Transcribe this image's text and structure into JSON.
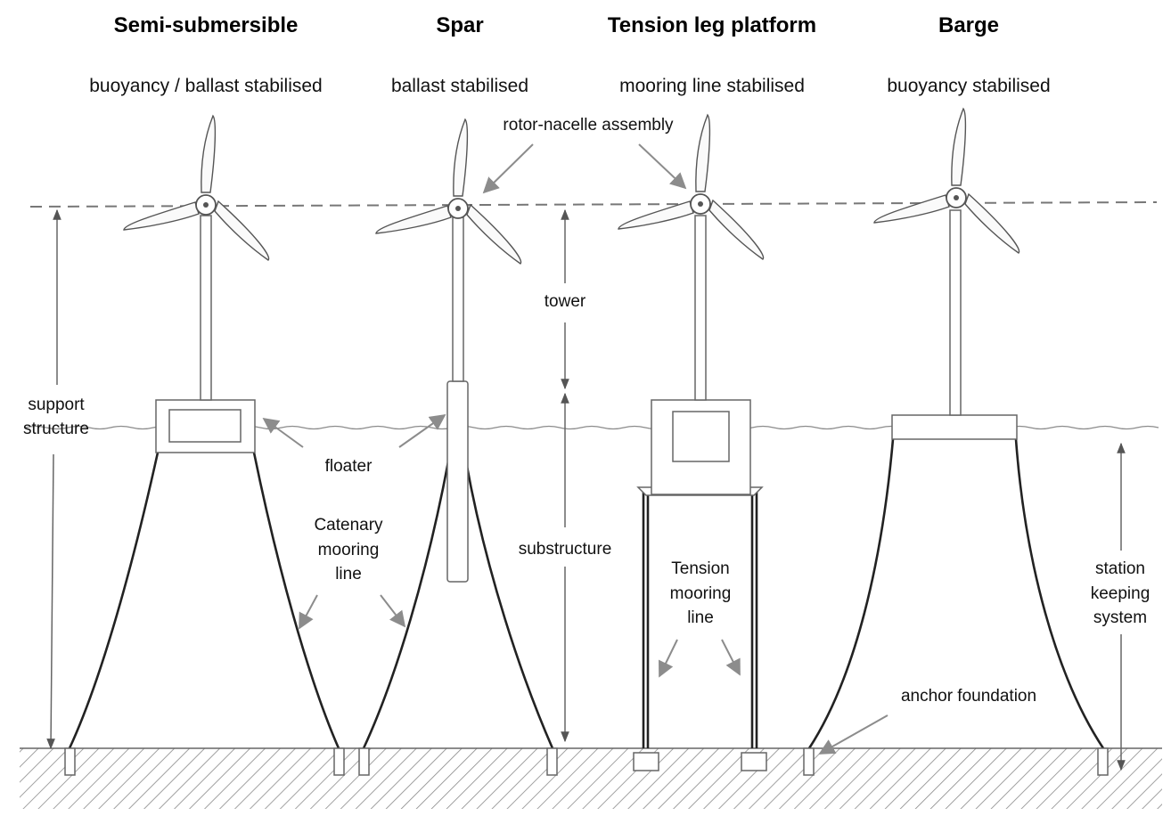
{
  "platforms": [
    {
      "title": "Semi-submersible",
      "subtitle": "buoyancy / ballast stabilised"
    },
    {
      "title": "Spar",
      "subtitle": "ballast stabilised"
    },
    {
      "title": "Tension leg platform",
      "subtitle": "mooring line stabilised"
    },
    {
      "title": "Barge",
      "subtitle": "buoyancy stabilised"
    }
  ],
  "labels": {
    "rotor_nacelle": "rotor-nacelle assembly",
    "tower": "tower",
    "support_structure": [
      "support",
      "structure"
    ],
    "floater": "floater",
    "substructure": "substructure",
    "catenary": [
      "Catenary",
      "mooring",
      "line"
    ],
    "tension": [
      "Tension",
      "mooring",
      "line"
    ],
    "station_keeping": [
      "station",
      "keeping",
      "system"
    ],
    "anchor": "anchor foundation"
  }
}
